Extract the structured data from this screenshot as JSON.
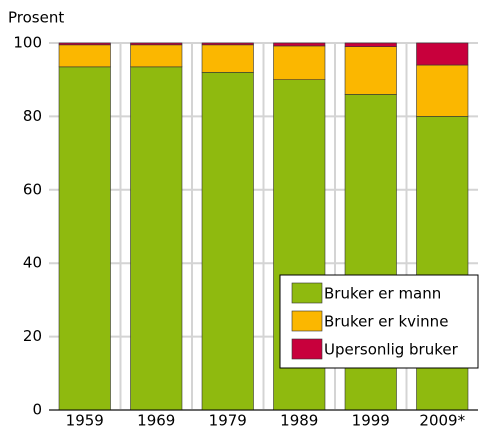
{
  "chart_data": {
    "type": "stacked_bar",
    "y_label": "Prosent",
    "categories": [
      "1959",
      "1969",
      "1979",
      "1989",
      "1999",
      "2009*"
    ],
    "series": [
      {
        "name": "Bruker er mann",
        "color": "#8fba0f",
        "values": [
          93.5,
          93.5,
          92,
          90,
          86,
          80
        ]
      },
      {
        "name": "Bruker er kvinne",
        "color": "#fbb700",
        "values": [
          6,
          6,
          7.5,
          9.2,
          13,
          14
        ]
      },
      {
        "name": "Upersonlig bruker",
        "color": "#c8003c",
        "values": [
          0.5,
          0.5,
          0.5,
          0.8,
          1,
          6
        ]
      }
    ],
    "ylim": [
      0,
      100
    ],
    "yticks": [
      0,
      20,
      40,
      60,
      80,
      100
    ],
    "grid": true,
    "legend": "lower right"
  }
}
